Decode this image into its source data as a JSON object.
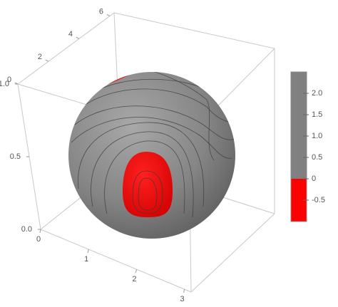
{
  "chart_data": {
    "type": "surface3d",
    "xlim": [
      0,
      3.14
    ],
    "xticks": [
      0,
      1,
      2,
      3
    ],
    "ylim": [
      0,
      6.28
    ],
    "yticks": [
      0,
      2,
      4,
      6
    ],
    "zlim": [
      0,
      1
    ],
    "zticks": [
      {
        "value": 0,
        "label": "0.0"
      },
      0.5,
      {
        "value": 1,
        "label": "1.0"
      }
    ],
    "colorbar": {
      "lim": [
        -1,
        2.5
      ],
      "ticks": [
        {
          "value": 2,
          "label": "2.0"
        },
        1.5,
        {
          "value": 1,
          "label": "1.0"
        },
        0.5,
        0,
        -0.5
      ],
      "bands": [
        {
          "range": [
            0,
            2.5
          ],
          "color": "#808080"
        },
        {
          "range": [
            -1,
            0
          ],
          "color": "#ff0000"
        }
      ]
    }
  }
}
